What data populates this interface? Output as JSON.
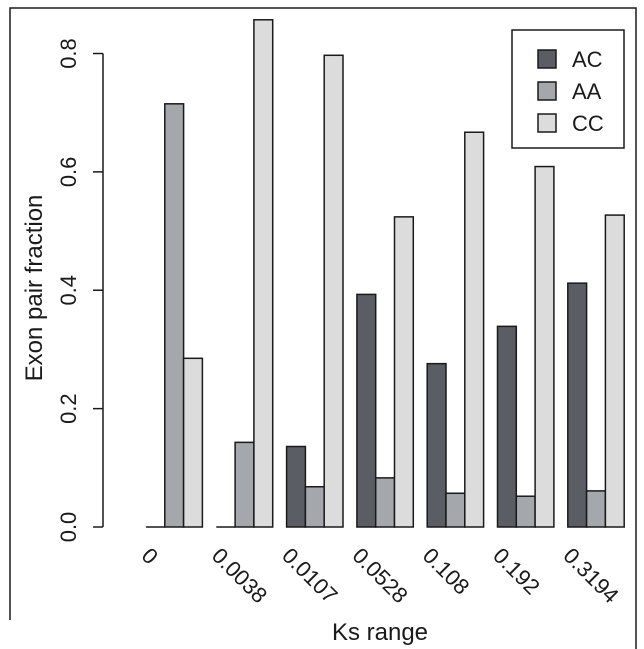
{
  "chart_data": {
    "type": "bar",
    "xlabel": "Ks range",
    "ylabel": "Exon pair fraction",
    "categories": [
      "0",
      "0.0038",
      "0.0107",
      "0.0528",
      "0.108",
      "0.192",
      "0.3194"
    ],
    "ylim": [
      0,
      0.86
    ],
    "yticks": [
      "0.0",
      "0.2",
      "0.4",
      "0.6",
      "0.8"
    ],
    "series": [
      {
        "name": "AC",
        "color": "#5a5d63",
        "values": [
          0.0,
          0.0,
          0.136,
          0.393,
          0.276,
          0.339,
          0.412
        ]
      },
      {
        "name": "AA",
        "color": "#a4a7ab",
        "values": [
          0.715,
          0.143,
          0.068,
          0.083,
          0.057,
          0.052,
          0.061
        ]
      },
      {
        "name": "CC",
        "color": "#dcdcdc",
        "values": [
          0.285,
          0.857,
          0.797,
          0.524,
          0.667,
          0.609,
          0.527
        ]
      }
    ],
    "legend": "top-right",
    "grid": false
  }
}
